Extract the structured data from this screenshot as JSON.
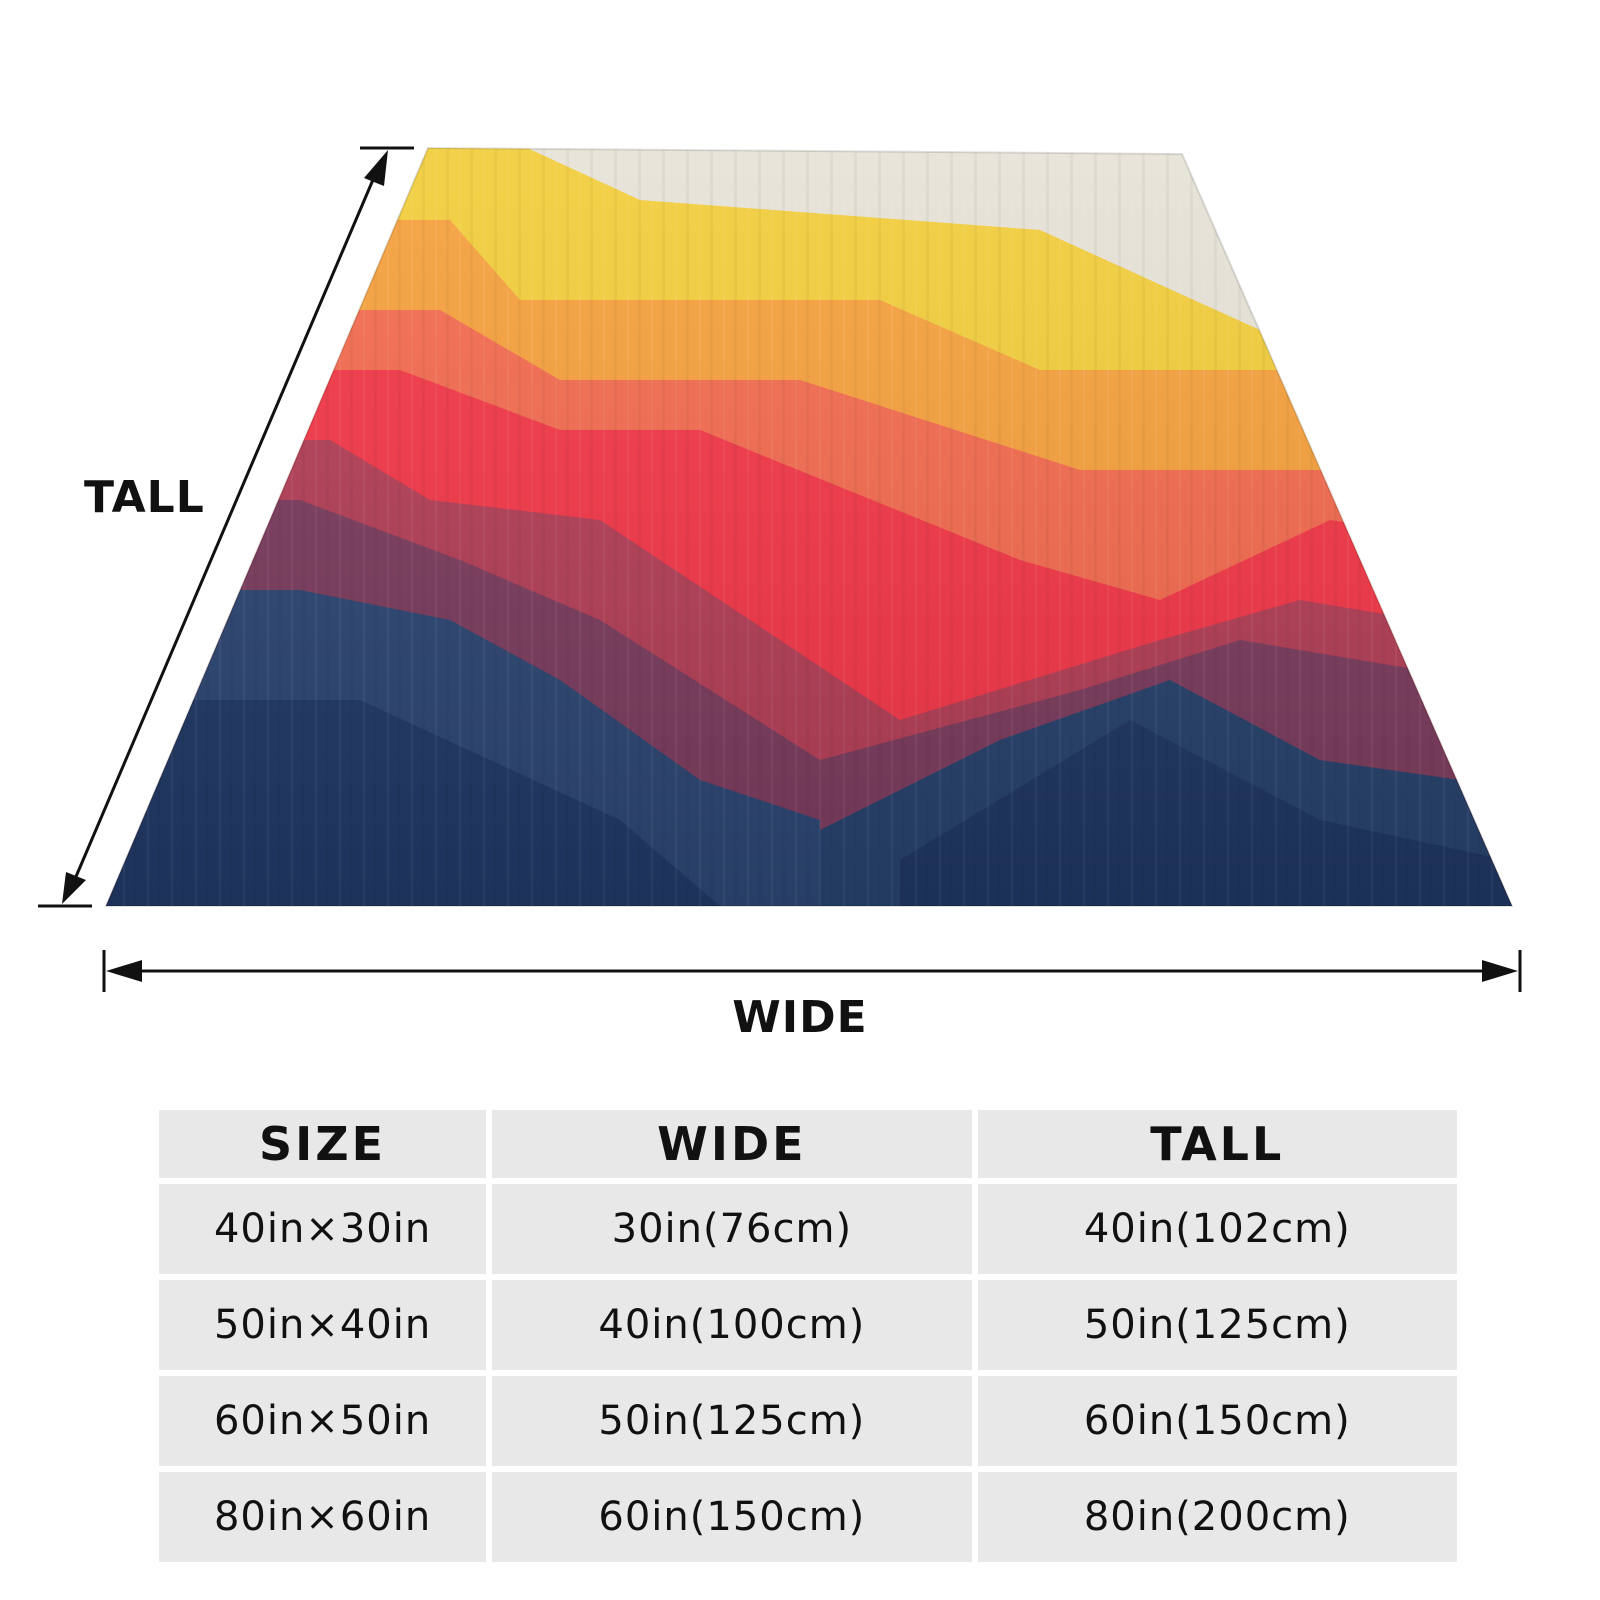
{
  "illustration": {
    "tall_label": "TALL",
    "wide_label": "WIDE",
    "palette": [
      "#e6e2d6",
      "#f2cd3a",
      "#f7a03c",
      "#f46a4e",
      "#f33647",
      "#8b3a55",
      "#27406c"
    ]
  },
  "size_table": {
    "headers": [
      "SIZE",
      "WIDE",
      "TALL"
    ],
    "rows": [
      [
        "40in×30in",
        "30in(76cm)",
        "40in(102cm)"
      ],
      [
        "50in×40in",
        "40in(100cm)",
        "50in(125cm)"
      ],
      [
        "60in×50in",
        "50in(125cm)",
        "60in(150cm)"
      ],
      [
        "80in×60in",
        "60in(150cm)",
        "80in(200cm)"
      ]
    ]
  }
}
